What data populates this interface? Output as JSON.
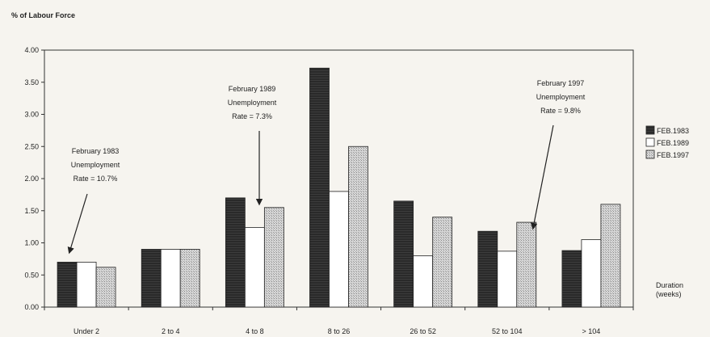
{
  "chart_data": {
    "type": "bar",
    "title": "",
    "ylabel": "% of Labour Force",
    "xlabel": "Duration (weeks)",
    "xlabel_lines": [
      "Duration",
      "(weeks)"
    ],
    "ylim": [
      0,
      4.0
    ],
    "yticks": [
      0,
      0.5,
      1.0,
      1.5,
      2.0,
      2.5,
      3.0,
      3.5,
      4.0
    ],
    "ytick_labels": [
      "0.00",
      "0.50",
      "1.00",
      "1.50",
      "2.00",
      "2.50",
      "3.00",
      "3.50",
      "4.00"
    ],
    "grid": false,
    "legend_position": "right",
    "categories": [
      "Under 2",
      "2 to 4",
      "4 to 8",
      "8 to 26",
      "26 to 52",
      "52 to 104",
      "> 104"
    ],
    "series": [
      {
        "name": "FEB.1983",
        "color": "#2b2b2b",
        "pattern": "solid-dark",
        "values": [
          0.7,
          0.9,
          1.7,
          3.72,
          1.65,
          1.18,
          0.88
        ]
      },
      {
        "name": "FEB.1989",
        "color": "#ffffff",
        "pattern": "white",
        "values": [
          0.7,
          0.9,
          1.24,
          1.8,
          0.8,
          0.87,
          1.05
        ]
      },
      {
        "name": "FEB.1997",
        "color": "#c8c8c8",
        "pattern": "dotted-grey",
        "values": [
          0.62,
          0.9,
          1.55,
          2.5,
          1.4,
          1.32,
          1.6
        ]
      }
    ],
    "annotations": [
      {
        "lines": [
          "February 1983",
          "Unemployment",
          "Rate = 10.7%"
        ],
        "points_to_category": "Under 2"
      },
      {
        "lines": [
          "February 1989",
          "Unemployment",
          "Rate = 7.3%"
        ],
        "points_to_category": "4 to 8"
      },
      {
        "lines": [
          "February 1997",
          "Unemployment",
          "Rate = 9.8%"
        ],
        "points_to_category": "52 to 104"
      }
    ]
  }
}
